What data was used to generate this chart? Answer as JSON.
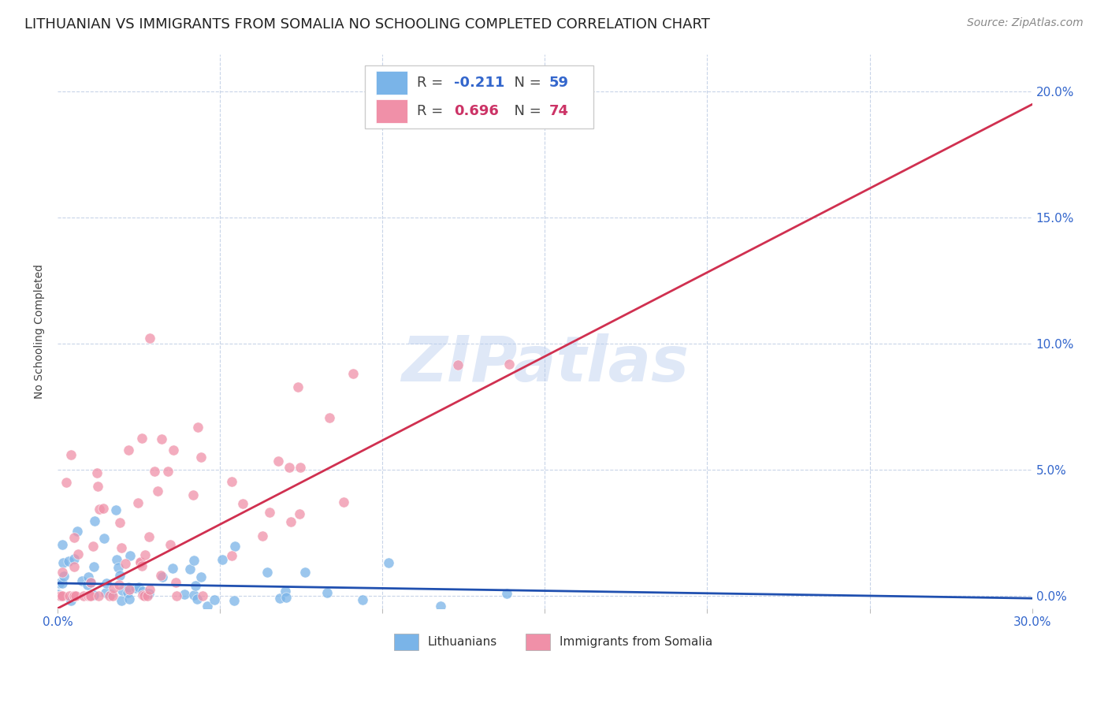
{
  "title": "LITHUANIAN VS IMMIGRANTS FROM SOMALIA NO SCHOOLING COMPLETED CORRELATION CHART",
  "source": "Source: ZipAtlas.com",
  "ylabel": "No Schooling Completed",
  "xmin": 0.0,
  "xmax": 0.3,
  "ymin": -0.005,
  "ymax": 0.215,
  "yticks": [
    0.0,
    0.05,
    0.1,
    0.15,
    0.2
  ],
  "ytick_labels": [
    "0.0%",
    "5.0%",
    "10.0%",
    "15.0%",
    "20.0%"
  ],
  "background_color": "#ffffff",
  "watermark": "ZIPatlas",
  "blue_scatter_color": "#7ab4e8",
  "pink_scatter_color": "#f090a8",
  "blue_line_color": "#2050b0",
  "pink_line_color": "#d03050",
  "blue_R": -0.211,
  "blue_N": 59,
  "pink_R": 0.696,
  "pink_N": 74,
  "title_fontsize": 13,
  "axis_label_fontsize": 10,
  "tick_fontsize": 11,
  "source_fontsize": 10,
  "legend_R_color": "#3366cc",
  "legend_N_color": "#3366cc",
  "legend_pink_R_color": "#cc3366",
  "legend_pink_N_color": "#cc3366"
}
